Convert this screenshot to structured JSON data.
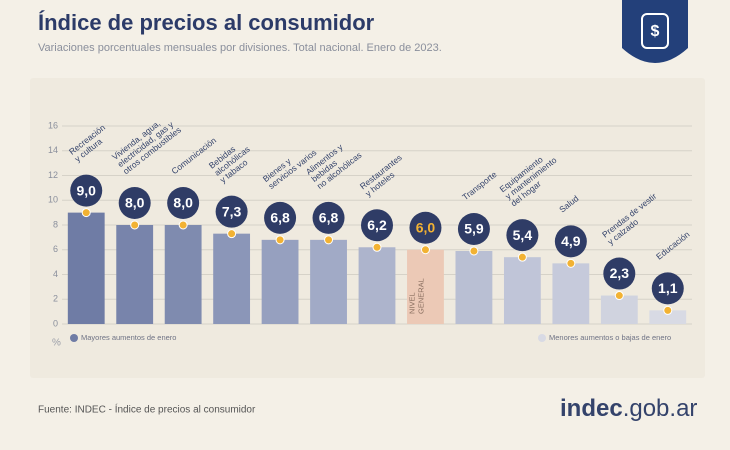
{
  "chart_data": {
    "type": "bar",
    "title": "Índice de precios al consumidor",
    "subtitle": "Variaciones porcentuales mensuales por divisiones. Total nacional. Enero de 2023.",
    "y_unit": "%",
    "categories": [
      [
        "Recreación",
        "y cultura"
      ],
      [
        "Vivienda, agua,",
        "electricidad, gas y",
        "otros combustibles"
      ],
      [
        "Comunicación"
      ],
      [
        "Bebidas",
        "alcohólicas",
        "y tabaco"
      ],
      [
        "Bienes y",
        "servicios varios"
      ],
      [
        "Alimentos y",
        "bebidas",
        "no alcohólicas"
      ],
      [
        "Restaurantes",
        "y hoteles"
      ],
      [
        "NIVEL",
        "GENERAL"
      ],
      [
        "Transporte"
      ],
      [
        "Equipamiento",
        "y mantenimiento",
        "del hogar"
      ],
      [
        "Salud"
      ],
      [
        "Prendas de vestir",
        "y calzado"
      ],
      [
        "Educación"
      ]
    ],
    "values": [
      9.0,
      8.0,
      8.0,
      7.3,
      6.8,
      6.8,
      6.2,
      6.0,
      5.9,
      5.4,
      4.9,
      2.3,
      1.1
    ],
    "value_labels": [
      "9,0",
      "8,0",
      "8,0",
      "7,3",
      "6,8",
      "6,8",
      "6,2",
      "6,0",
      "5,9",
      "5,4",
      "4,9",
      "2,3",
      "1,1"
    ],
    "colors": [
      "#6f7ca5",
      "#7884ab",
      "#7f8baf",
      "#8b96b8",
      "#96a0bf",
      "#a1aac6",
      "#adb4cc",
      "#ecc9b6",
      "#b9bfd3",
      "#c0c5d8",
      "#c6cadb",
      "#d0d3df",
      "#d8dae4"
    ],
    "value_label_colors": [
      "#ffffff",
      "#ffffff",
      "#ffffff",
      "#ffffff",
      "#ffffff",
      "#ffffff",
      "#ffffff",
      "#f2b233",
      "#ffffff",
      "#ffffff",
      "#ffffff",
      "#ffffff",
      "#ffffff"
    ],
    "ylim": [
      0,
      16
    ],
    "yticks": [
      0,
      2,
      4,
      6,
      8,
      10,
      12,
      14,
      16
    ],
    "grid": true,
    "legend": [
      {
        "label": "Mayores aumentos de enero",
        "color": "#6f7ca5"
      },
      {
        "label": "Menores aumentos o bajas de enero",
        "color": "#d8dae4"
      }
    ],
    "source": "Fuente: INDEC - Índice de precios al consumidor",
    "logo": [
      "indec",
      ".gob.ar"
    ]
  }
}
